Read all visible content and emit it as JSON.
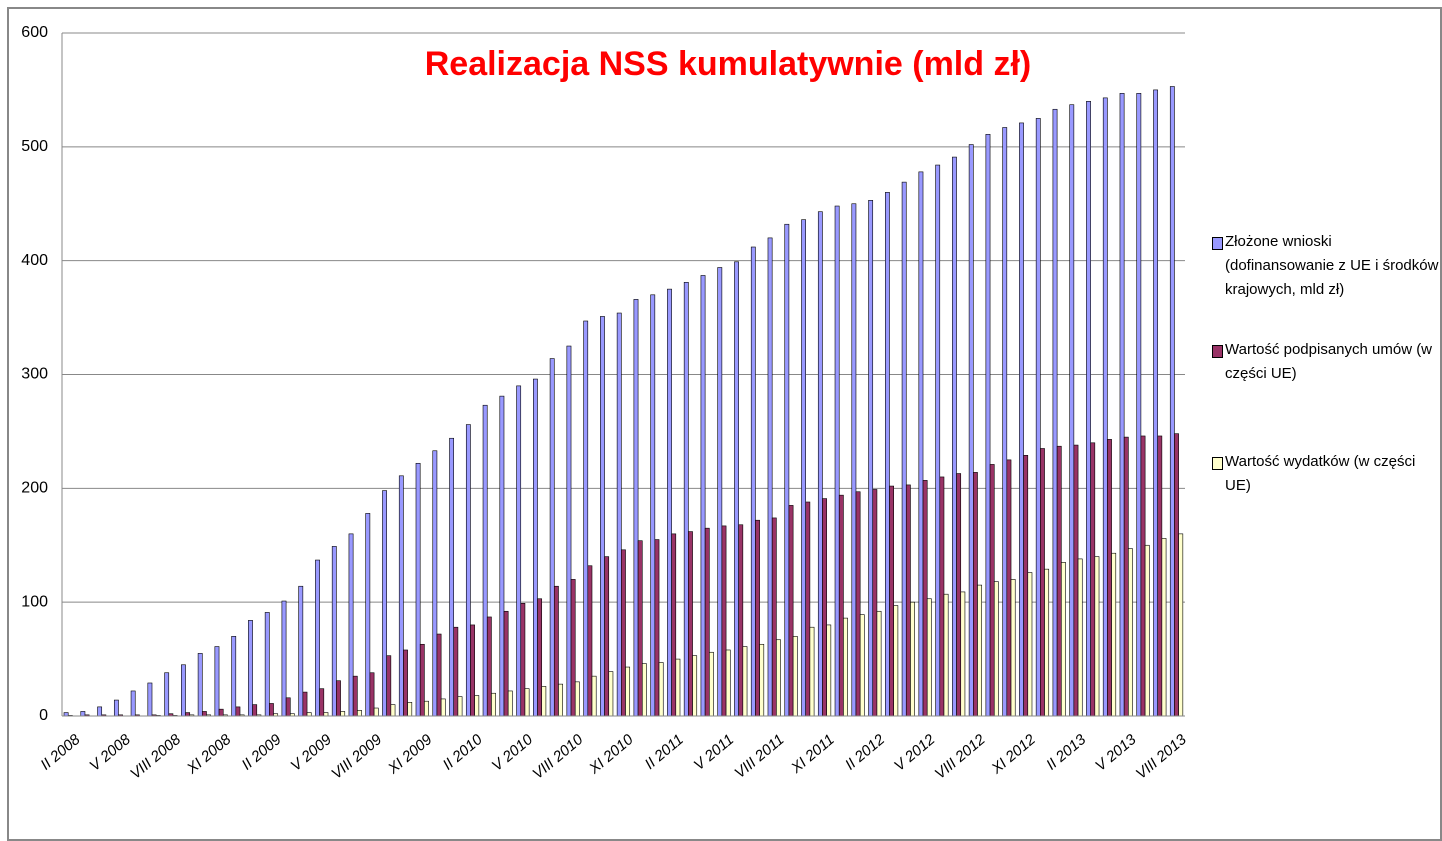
{
  "chart_data": {
    "type": "bar",
    "title": "Realizacja NSS kumulatywnie (mld zł)",
    "categories": [
      "II 2008",
      null,
      null,
      "V 2008",
      null,
      null,
      "VIII 2008",
      null,
      null,
      "XI 2008",
      null,
      null,
      "II 2009",
      null,
      null,
      "V 2009",
      null,
      null,
      "VIII 2009",
      null,
      null,
      "XI 2009",
      null,
      null,
      "II 2010",
      null,
      null,
      "V 2010",
      null,
      null,
      "VIII 2010",
      null,
      null,
      "XI 2010",
      null,
      null,
      "II 2011",
      null,
      null,
      "V 2011",
      null,
      null,
      "VIII 2011",
      null,
      null,
      "XI 2011",
      null,
      null,
      "II 2012",
      null,
      null,
      "V 2012",
      null,
      null,
      "VIII 2012",
      null,
      null,
      "XI 2012",
      null,
      null,
      "II 2013",
      null,
      null,
      "V 2013",
      null,
      null,
      "VIII 2013"
    ],
    "series": [
      {
        "name": "Złożone wnioski (dofinansowanie z UE i środków krajowych, mld zł)",
        "color": "#9999ff",
        "values": [
          3,
          4,
          8,
          14,
          22,
          29,
          38,
          45,
          55,
          61,
          70,
          84,
          91,
          101,
          114,
          137,
          149,
          160,
          178,
          198,
          211,
          222,
          233,
          244,
          256,
          273,
          281,
          290,
          296,
          314,
          325,
          347,
          351,
          354,
          366,
          370,
          375,
          381,
          387,
          394,
          399,
          412,
          420,
          432,
          436,
          443,
          448,
          450,
          453,
          460,
          469,
          478,
          484,
          491,
          502,
          511,
          517,
          521,
          525,
          533,
          537,
          540,
          543,
          547,
          547,
          550,
          553
        ]
      },
      {
        "name": "Wartość podpisanych umów (w części UE)",
        "color": "#993366",
        "values": [
          0.5,
          1,
          1,
          1,
          1,
          1,
          2,
          3,
          4,
          6,
          8,
          10,
          11,
          16,
          21,
          24,
          31,
          35,
          38,
          53,
          58,
          63,
          72,
          78,
          80,
          87,
          92,
          99,
          103,
          114,
          120,
          132,
          140,
          146,
          154,
          155,
          160,
          162,
          165,
          167,
          168,
          172,
          174,
          185,
          188,
          191,
          194,
          197,
          199,
          202,
          203,
          207,
          210,
          213,
          214,
          221,
          225,
          229,
          235,
          237,
          238,
          240,
          243,
          245,
          246,
          246,
          248
        ]
      },
      {
        "name": "Wartość wydatków (w części UE)",
        "color": "#ffffcc",
        "values": [
          0,
          0,
          0,
          0,
          0,
          0.5,
          0.5,
          1,
          1,
          1,
          1,
          1,
          2,
          2,
          3,
          3,
          4,
          5,
          7,
          10,
          12,
          13,
          15,
          17,
          18,
          20,
          22,
          24,
          26,
          28,
          30,
          35,
          39,
          43,
          46,
          47,
          50,
          53,
          56,
          58,
          61,
          63,
          67,
          70,
          78,
          80,
          86,
          89,
          92,
          97,
          100,
          103,
          107,
          109,
          115,
          118,
          120,
          126,
          129,
          135,
          138,
          140,
          143,
          147,
          150,
          156,
          160
        ]
      }
    ],
    "ylim": [
      0,
      600
    ],
    "yticks": [
      0,
      100,
      200,
      300,
      400,
      500,
      600
    ],
    "grid": true,
    "legend": "right"
  }
}
